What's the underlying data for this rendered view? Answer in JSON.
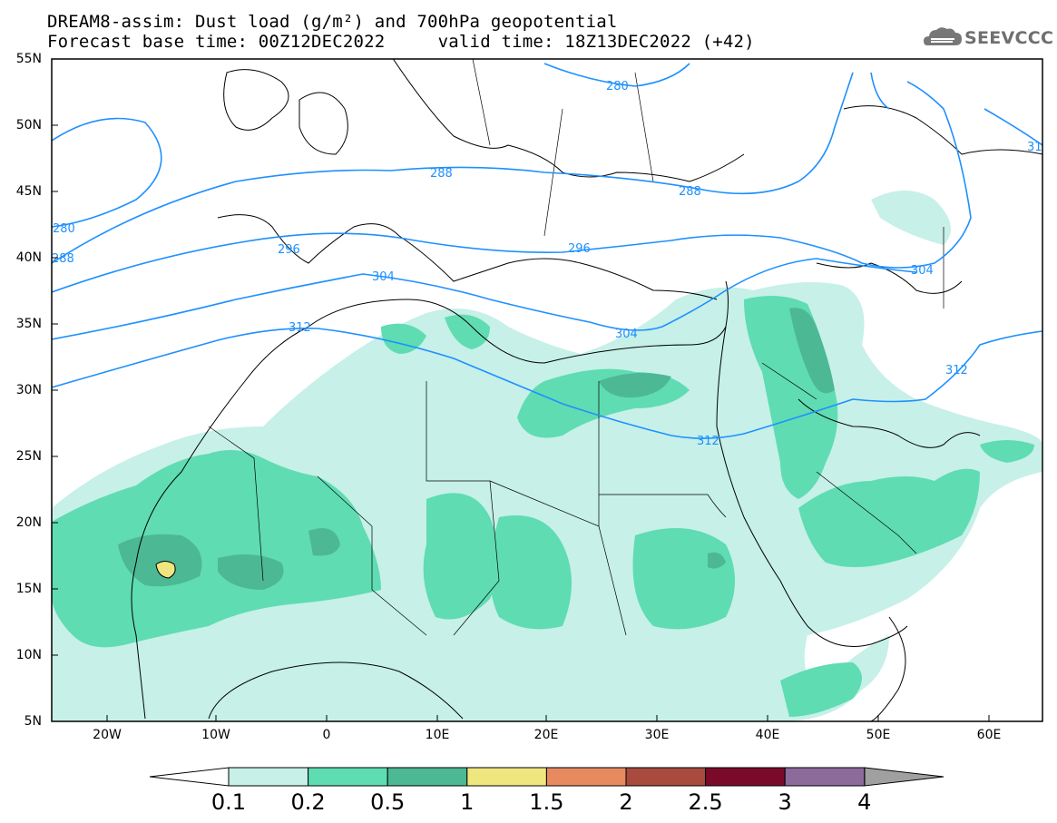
{
  "title_line1": "DREAM8-assim: Dust load (g/m²) and 700hPa geopotential",
  "title_line2": "Forecast base time: 00Z12DEC2022     valid time: 18Z13DEC2022 (+42)",
  "logo_text": "SEEVCCC",
  "latitude_labels": [
    "55N",
    "50N",
    "45N",
    "40N",
    "35N",
    "30N",
    "25N",
    "20N",
    "15N",
    "10N",
    "5N"
  ],
  "longitude_labels": [
    "20W",
    "10W",
    "0",
    "10E",
    "20E",
    "30E",
    "40E",
    "50E",
    "60E"
  ],
  "contour_labels": [
    "280",
    "280",
    "288",
    "288",
    "288",
    "296",
    "296",
    "304",
    "304",
    "304",
    "312",
    "312",
    "312",
    "31"
  ],
  "colorbar": {
    "labels": [
      "0.1",
      "0.2",
      "0.5",
      "1",
      "1.5",
      "2",
      "2.5",
      "3",
      "4"
    ],
    "colors": [
      "#c6f0e8",
      "#5fdcb2",
      "#4db894",
      "#f0e680",
      "#e88a60",
      "#a84a3e",
      "#7a0a2a",
      "#8c6a9a"
    ],
    "under_color": "#ffffff",
    "over_color": "#a0a0a0"
  },
  "colors": {
    "geopotential_contour": "#1e90ff",
    "coastline": "#000000",
    "dust_low": "#c6f0e8",
    "dust_mid": "#5fdcb2",
    "dust_high": "#4db894",
    "dust_max": "#f0e680"
  }
}
